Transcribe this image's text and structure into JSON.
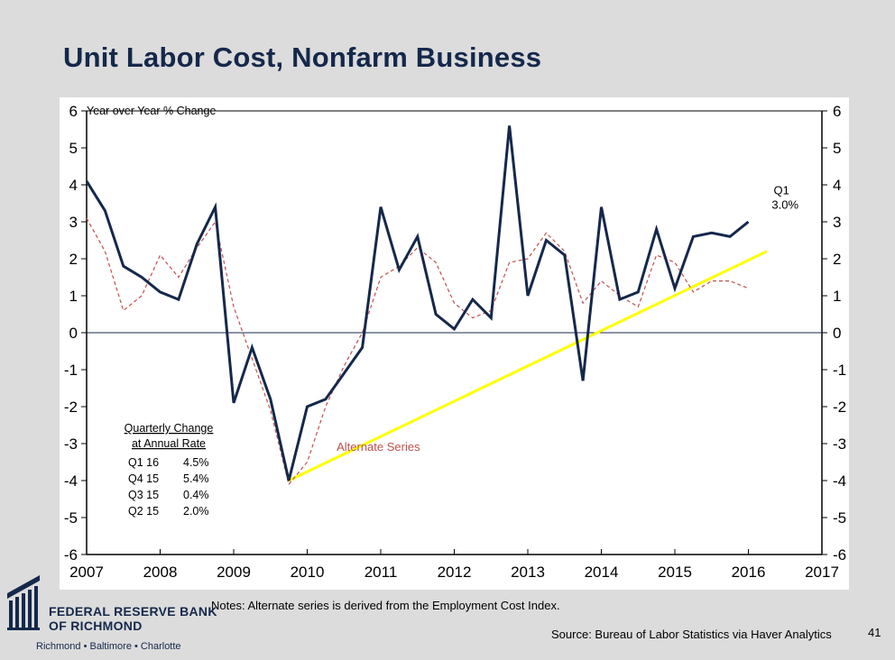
{
  "slide": {
    "title": "Unit Labor Cost, Nonfarm Business",
    "notes": "Notes: Alternate series is derived from the Employment Cost Index.",
    "source": "Source: Bureau of Labor Statistics via Haver Analytics",
    "page_number": "41"
  },
  "logo": {
    "line1": "FEDERAL RESERVE BANK",
    "line2": "OF RICHMOND",
    "cities": "Richmond • Baltimore • Charlotte"
  },
  "chart_data": {
    "type": "line",
    "ylabel": "Year over Year % Change",
    "xlim": [
      2007,
      2017
    ],
    "ylim": [
      -6,
      6
    ],
    "x_ticks": [
      "2007",
      "2008",
      "2009",
      "2010",
      "2011",
      "2012",
      "2013",
      "2014",
      "2015",
      "2016",
      "2017"
    ],
    "y_ticks": [
      "6",
      "5",
      "4",
      "3",
      "2",
      "1",
      "0",
      "-1",
      "-2",
      "-3",
      "-4",
      "-5",
      "-6"
    ],
    "grid": false,
    "colors": {
      "main": "#15284b",
      "alternate": "#c0504d",
      "trend": "#ffff00",
      "zero": "#15284b"
    },
    "series": [
      {
        "key": "main",
        "x": [
          2007.0,
          2007.25,
          2007.5,
          2007.75,
          2008.0,
          2008.25,
          2008.5,
          2008.75,
          2009.0,
          2009.25,
          2009.5,
          2009.75,
          2010.0,
          2010.25,
          2010.5,
          2010.75,
          2011.0,
          2011.25,
          2011.5,
          2011.75,
          2012.0,
          2012.25,
          2012.5,
          2012.75,
          2013.0,
          2013.25,
          2013.5,
          2013.75,
          2014.0,
          2014.25,
          2014.5,
          2014.75,
          2015.0,
          2015.25,
          2015.5,
          2015.75,
          2016.0
        ],
        "values": [
          4.1,
          3.3,
          1.8,
          1.5,
          1.1,
          0.9,
          2.4,
          3.4,
          -1.9,
          -0.4,
          -1.8,
          -4.0,
          -2.0,
          -1.8,
          -1.1,
          -0.4,
          3.4,
          1.7,
          2.6,
          0.5,
          0.1,
          0.9,
          0.4,
          5.6,
          1.0,
          2.5,
          2.1,
          -1.3,
          3.4,
          0.9,
          1.1,
          2.8,
          1.2,
          2.6,
          2.7,
          2.6,
          3.0
        ]
      },
      {
        "name": "Alternate Series",
        "key": "alternate",
        "style": "dashed",
        "x": [
          2007.0,
          2007.25,
          2007.5,
          2007.75,
          2008.0,
          2008.25,
          2008.5,
          2008.75,
          2009.0,
          2009.25,
          2009.5,
          2009.75,
          2010.0,
          2010.25,
          2010.5,
          2010.75,
          2011.0,
          2011.25,
          2011.5,
          2011.75,
          2012.0,
          2012.25,
          2012.5,
          2012.75,
          2013.0,
          2013.25,
          2013.5,
          2013.75,
          2014.0,
          2014.25,
          2014.5,
          2014.75,
          2015.0,
          2015.25,
          2015.5,
          2015.75,
          2016.0
        ],
        "values": [
          3.1,
          2.2,
          0.6,
          1.0,
          2.1,
          1.5,
          2.3,
          3.0,
          0.7,
          -0.7,
          -2.1,
          -4.1,
          -3.5,
          -2.0,
          -0.9,
          0.0,
          1.5,
          1.8,
          2.3,
          1.9,
          0.8,
          0.4,
          0.6,
          1.9,
          2.0,
          2.7,
          2.2,
          0.8,
          1.4,
          1.0,
          0.7,
          2.1,
          1.9,
          1.1,
          1.4,
          1.4,
          1.2
        ]
      },
      {
        "key": "trend",
        "x": [
          2009.75,
          2016.25
        ],
        "values": [
          -4.0,
          2.2
        ]
      }
    ],
    "annotations": [
      {
        "text": "Q1",
        "x": 2016.45,
        "y": 3.75
      },
      {
        "text": "3.0%",
        "x": 2016.5,
        "y": 3.35
      },
      {
        "text": "Alternate Series",
        "x": 2010.4,
        "y": -3.2
      }
    ],
    "inset_table": {
      "title_line1": "Quarterly Change",
      "title_line2": "at Annual Rate",
      "rows": [
        {
          "period": "Q1 16",
          "value": "4.5%"
        },
        {
          "period": "Q4 15",
          "value": "5.4%"
        },
        {
          "period": "Q3 15",
          "value": "0.4%"
        },
        {
          "period": "Q2 15",
          "value": "2.0%"
        }
      ]
    }
  }
}
